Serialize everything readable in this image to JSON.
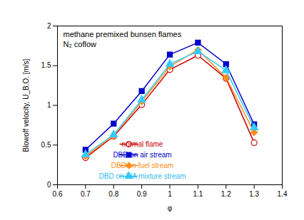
{
  "chart_data": {
    "type": "line",
    "title": "methane premixed bunsen flames",
    "subtitle": "N₂ coflow",
    "x_label": "φ",
    "y_label": "Blowoff velocity, U_B.O. [m/s]",
    "x": [
      0.7,
      0.8,
      0.9,
      1.0,
      1.1,
      1.2,
      1.3
    ],
    "xlim": [
      0.6,
      1.4
    ],
    "xticks": [
      0.6,
      0.7,
      0.8,
      0.9,
      1,
      1.1,
      1.2,
      1.3,
      1.4
    ],
    "ylim": [
      0,
      2
    ],
    "yticks": [
      0,
      0.5,
      1,
      1.5,
      2
    ],
    "grid": false,
    "legend": "lower center",
    "series": [
      {
        "name": "normal flame",
        "color": "#cc0000",
        "marker": "open_circle",
        "line_style": "solid",
        "values": [
          0.34,
          0.61,
          1.01,
          1.45,
          1.63,
          1.34,
          0.53
        ]
      },
      {
        "name": "DBD on air stream",
        "color": "#0000cc",
        "marker": "square",
        "line_style": "solid",
        "values": [
          0.44,
          0.77,
          1.18,
          1.64,
          1.79,
          1.52,
          0.76
        ]
      },
      {
        "name": "DBD on fuel stream",
        "color": "#ff8c1a",
        "marker": "diamond",
        "line_style": "solid",
        "values": [
          0.36,
          0.62,
          1.05,
          1.49,
          1.7,
          1.35,
          0.66
        ]
      },
      {
        "name": "DBD on F/A mixture stream",
        "color": "#33ccff",
        "marker": "triangle",
        "line_style": "solid",
        "values": [
          0.38,
          0.63,
          1.07,
          1.52,
          1.68,
          1.44,
          0.72
        ]
      }
    ]
  }
}
